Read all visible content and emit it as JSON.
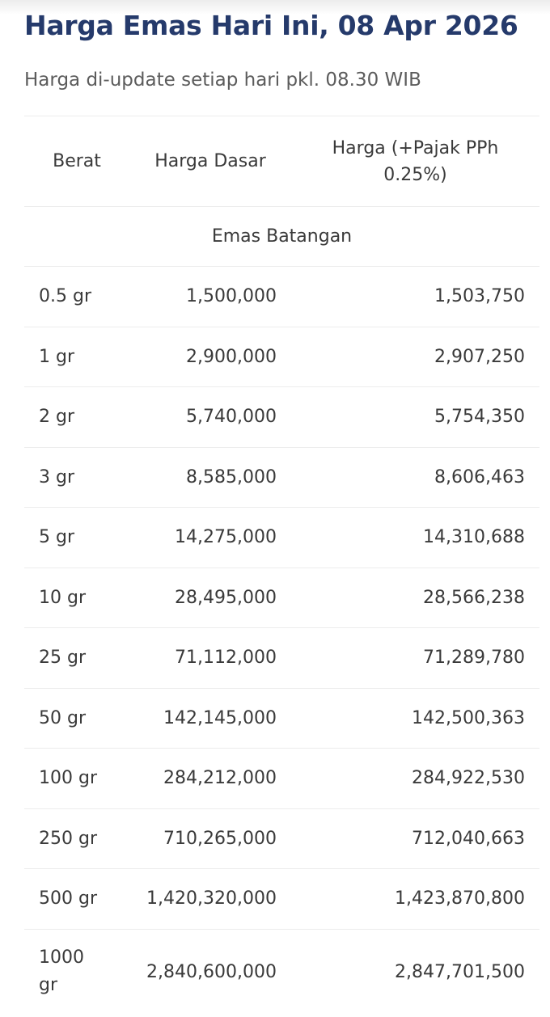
{
  "title": "Harga Emas Hari Ini, 08 Apr 2026",
  "subtitle": "Harga di-update setiap hari pkl. 08.30 WIB",
  "table": {
    "headers": {
      "weight": "Berat",
      "base_price": "Harga Dasar",
      "price_with_tax": "Harga (+Pajak PPh 0.25%)"
    },
    "group_label": "Emas Batangan",
    "rows": [
      {
        "weight": "0.5 gr",
        "base": "1,500,000",
        "with_tax": "1,503,750"
      },
      {
        "weight": "1 gr",
        "base": "2,900,000",
        "with_tax": "2,907,250"
      },
      {
        "weight": "2 gr",
        "base": "5,740,000",
        "with_tax": "5,754,350"
      },
      {
        "weight": "3 gr",
        "base": "8,585,000",
        "with_tax": "8,606,463"
      },
      {
        "weight": "5 gr",
        "base": "14,275,000",
        "with_tax": "14,310,688"
      },
      {
        "weight": "10 gr",
        "base": "28,495,000",
        "with_tax": "28,566,238"
      },
      {
        "weight": "25 gr",
        "base": "71,112,000",
        "with_tax": "71,289,780"
      },
      {
        "weight": "50 gr",
        "base": "142,145,000",
        "with_tax": "142,500,363"
      },
      {
        "weight": "100 gr",
        "base": "284,212,000",
        "with_tax": "284,922,530"
      },
      {
        "weight": "250 gr",
        "base": "710,265,000",
        "with_tax": "712,040,663"
      },
      {
        "weight": "500 gr",
        "base": "1,420,320,000",
        "with_tax": "1,423,870,800"
      },
      {
        "weight": "1000 gr",
        "base": "2,840,600,000",
        "with_tax": "2,847,701,500"
      }
    ]
  }
}
